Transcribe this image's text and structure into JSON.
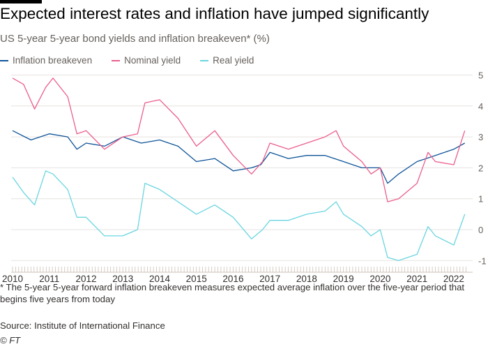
{
  "title": "Expected interest rates and inflation have jumped significantly",
  "subtitle": "US 5-year 5-year bond yields and inflation breakeven* (%)",
  "note": "* The 5-year 5-year forward inflation breakeven measures expected average inflation over the five-year period that begins five years from today",
  "source": "Source: Institute of International Finance",
  "copyright": "© FT",
  "chart_data": {
    "type": "line",
    "xlim": [
      2010,
      2022.4
    ],
    "ylim": [
      -1.25,
      5.1
    ],
    "y_ticks": [
      "5",
      "4",
      "3",
      "2",
      "1",
      "0",
      "-1"
    ],
    "x_ticks": [
      "2010",
      "2011",
      "2012",
      "2013",
      "2014",
      "2015",
      "2016",
      "2017",
      "2018",
      "2019",
      "2020",
      "2021",
      "2022"
    ],
    "y_axis_side": "right",
    "grid": true,
    "legend": "top-left",
    "series": [
      {
        "name": "Inflation breakeven",
        "color": "#0f5499",
        "x": [
          2010,
          2010.5,
          2011,
          2011.5,
          2011.75,
          2012,
          2012.5,
          2013,
          2013.5,
          2014,
          2014.5,
          2015,
          2015.5,
          2016,
          2016.5,
          2016.75,
          2017,
          2017.5,
          2018,
          2018.5,
          2019,
          2019.5,
          2020,
          2020.2,
          2020.5,
          2021,
          2021.5,
          2022,
          2022.3
        ],
        "y": [
          3.2,
          2.9,
          3.1,
          3.0,
          2.6,
          2.8,
          2.7,
          3.0,
          2.8,
          2.9,
          2.7,
          2.2,
          2.3,
          1.9,
          2.0,
          2.1,
          2.5,
          2.3,
          2.4,
          2.4,
          2.2,
          2.0,
          2.0,
          1.5,
          1.8,
          2.2,
          2.4,
          2.6,
          2.8
        ]
      },
      {
        "name": "Nominal yield",
        "color": "#eb5e8d",
        "x": [
          2010,
          2010.3,
          2010.6,
          2010.9,
          2011.1,
          2011.5,
          2011.75,
          2012,
          2012.5,
          2013,
          2013.4,
          2013.6,
          2014,
          2014.5,
          2015,
          2015.5,
          2016,
          2016.5,
          2016.8,
          2017,
          2017.5,
          2018,
          2018.5,
          2018.8,
          2019,
          2019.5,
          2019.75,
          2020,
          2020.2,
          2020.5,
          2021,
          2021.3,
          2021.5,
          2022,
          2022.3
        ],
        "y": [
          4.9,
          4.7,
          3.9,
          4.6,
          4.9,
          4.3,
          3.1,
          3.2,
          2.6,
          3.0,
          3.1,
          4.1,
          4.2,
          3.6,
          2.7,
          3.2,
          2.4,
          1.8,
          2.2,
          2.8,
          2.6,
          2.8,
          3.0,
          3.2,
          2.7,
          2.2,
          1.8,
          2.0,
          0.9,
          1.0,
          1.5,
          2.5,
          2.2,
          2.1,
          3.2
        ]
      },
      {
        "name": "Real yield",
        "color": "#6ad5e0",
        "x": [
          2010,
          2010.3,
          2010.6,
          2010.9,
          2011.1,
          2011.5,
          2011.75,
          2012,
          2012.5,
          2013,
          2013.4,
          2013.6,
          2014,
          2014.5,
          2015,
          2015.5,
          2016,
          2016.5,
          2016.8,
          2017,
          2017.5,
          2018,
          2018.5,
          2018.8,
          2019,
          2019.5,
          2019.75,
          2020,
          2020.2,
          2020.5,
          2021,
          2021.3,
          2021.5,
          2022,
          2022.3
        ],
        "y": [
          1.7,
          1.2,
          0.8,
          1.9,
          1.8,
          1.3,
          0.4,
          0.4,
          -0.2,
          -0.2,
          0.0,
          1.5,
          1.3,
          0.9,
          0.5,
          0.8,
          0.4,
          -0.3,
          0.0,
          0.3,
          0.3,
          0.5,
          0.6,
          0.9,
          0.5,
          0.1,
          -0.2,
          0.0,
          -0.9,
          -1.0,
          -0.8,
          0.1,
          -0.2,
          -0.5,
          0.5
        ]
      }
    ]
  }
}
